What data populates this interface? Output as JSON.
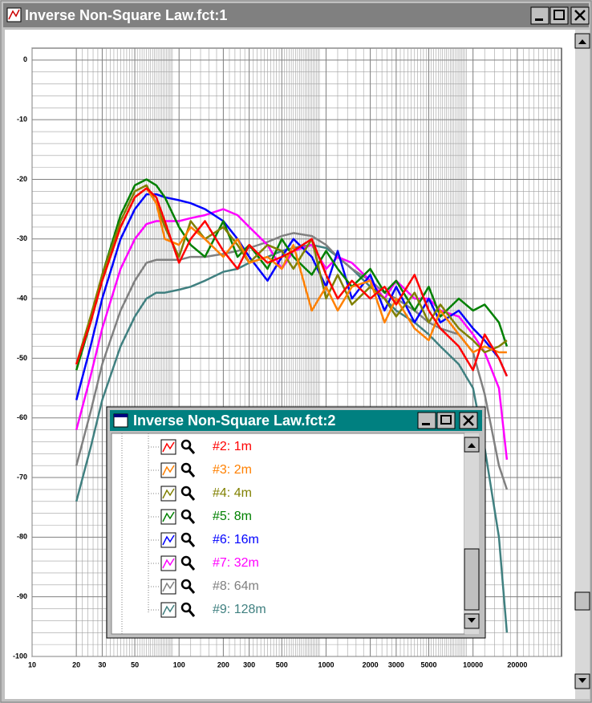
{
  "window": {
    "title": "Inverse Non-Square Law.fct:1"
  },
  "legend_window": {
    "title": "Inverse Non-Square Law.fct:2"
  },
  "chart_data": {
    "type": "line",
    "log_x": true,
    "grid": true,
    "xlim": [
      10,
      40000
    ],
    "ylim": [
      -100,
      2
    ],
    "xticks": [
      10,
      20,
      30,
      50,
      100,
      200,
      300,
      500,
      1000,
      2000,
      3000,
      5000,
      10000,
      20000
    ],
    "yticks": [
      0,
      -10,
      -20,
      -30,
      -40,
      -50,
      -60,
      -70,
      -80,
      -90,
      -100
    ],
    "x": [
      20,
      25,
      30,
      40,
      50,
      60,
      70,
      80,
      100,
      120,
      150,
      200,
      250,
      300,
      400,
      500,
      600,
      800,
      1000,
      1200,
      1500,
      2000,
      2500,
      3000,
      4000,
      5000,
      6000,
      8000,
      10000,
      12000,
      15000,
      17000
    ],
    "series": [
      {
        "name": "#2: 1m",
        "color": "#ff0000",
        "values": [
          -51,
          -44,
          -37,
          -28,
          -23,
          -21.5,
          -23,
          -27,
          -34,
          -30,
          -27,
          -32,
          -35,
          -31,
          -34,
          -33,
          -32,
          -30,
          -36,
          -40,
          -37,
          -40,
          -38,
          -41,
          -36,
          -42,
          -45,
          -48,
          -52,
          -46,
          -50,
          -53
        ]
      },
      {
        "name": "#3: 2m",
        "color": "#ff8000",
        "values": [
          -51,
          -44,
          -37,
          -28,
          -23,
          -21.5,
          -24,
          -30,
          -31,
          -28,
          -30,
          -33,
          -30,
          -34,
          -33,
          -35,
          -31,
          -42,
          -38,
          -42,
          -38,
          -37,
          -44,
          -40,
          -45,
          -47,
          -42,
          -46,
          -49,
          -48,
          -49,
          -49
        ]
      },
      {
        "name": "#4: 4m",
        "color": "#808000",
        "values": [
          -51,
          -43,
          -36,
          -27,
          -22,
          -21,
          -24,
          -28,
          -33,
          -27,
          -30,
          -28,
          -31,
          -34,
          -31,
          -32,
          -35,
          -30,
          -40,
          -36,
          -41,
          -38,
          -40,
          -43,
          -39,
          -44,
          -41,
          -45,
          -47,
          -49,
          -48,
          -47
        ]
      },
      {
        "name": "#5: 8m",
        "color": "#008000",
        "values": [
          -52,
          -44,
          -36,
          -26,
          -21,
          -20,
          -21,
          -23,
          -28,
          -31,
          -33,
          -27,
          -33,
          -31,
          -35,
          -30,
          -33,
          -36,
          -32,
          -35,
          -38,
          -35,
          -39,
          -37,
          -42,
          -38,
          -43,
          -40,
          -42,
          -41,
          -44,
          -48
        ]
      },
      {
        "name": "#6: 16m",
        "color": "#0000ff",
        "values": [
          -57,
          -48,
          -40,
          -30,
          -25,
          -22.5,
          -22.5,
          -23,
          -23.5,
          -24,
          -25,
          -27,
          -30,
          -33,
          -37,
          -33,
          -30,
          -33,
          -38,
          -32,
          -40,
          -36,
          -42,
          -38,
          -44,
          -40,
          -44,
          -42,
          -45,
          -47,
          -50,
          -53
        ]
      },
      {
        "name": "#7: 32m",
        "color": "#ff00ff",
        "values": [
          -62,
          -53,
          -45,
          -35,
          -30,
          -27.5,
          -27,
          -27,
          -27,
          -26.5,
          -26,
          -25,
          -26,
          -28,
          -31,
          -35,
          -32,
          -31,
          -35,
          -33,
          -34,
          -37,
          -40,
          -37,
          -40,
          -40,
          -42,
          -43,
          -46,
          -49,
          -55,
          -67
        ]
      },
      {
        "name": "#8: 64m",
        "color": "#808080",
        "values": [
          -68,
          -59,
          -51,
          -42,
          -37,
          -34,
          -33.5,
          -33.5,
          -33.5,
          -33,
          -33,
          -32.5,
          -32,
          -31.5,
          -30.5,
          -29.5,
          -29,
          -29.5,
          -31,
          -33,
          -35,
          -37,
          -39,
          -40,
          -42,
          -44,
          -45,
          -46,
          -49,
          -56,
          -68,
          -72
        ]
      },
      {
        "name": "#9: 128m",
        "color": "#408080",
        "values": [
          -74,
          -65,
          -57,
          -48,
          -43,
          -40,
          -39,
          -39,
          -38.5,
          -38,
          -37,
          -35.5,
          -35,
          -34,
          -33,
          -32,
          -31.5,
          -31,
          -31.5,
          -33,
          -35,
          -38,
          -40,
          -42,
          -44,
          -46,
          -48,
          -51,
          -55,
          -65,
          -80,
          -96
        ]
      }
    ]
  }
}
